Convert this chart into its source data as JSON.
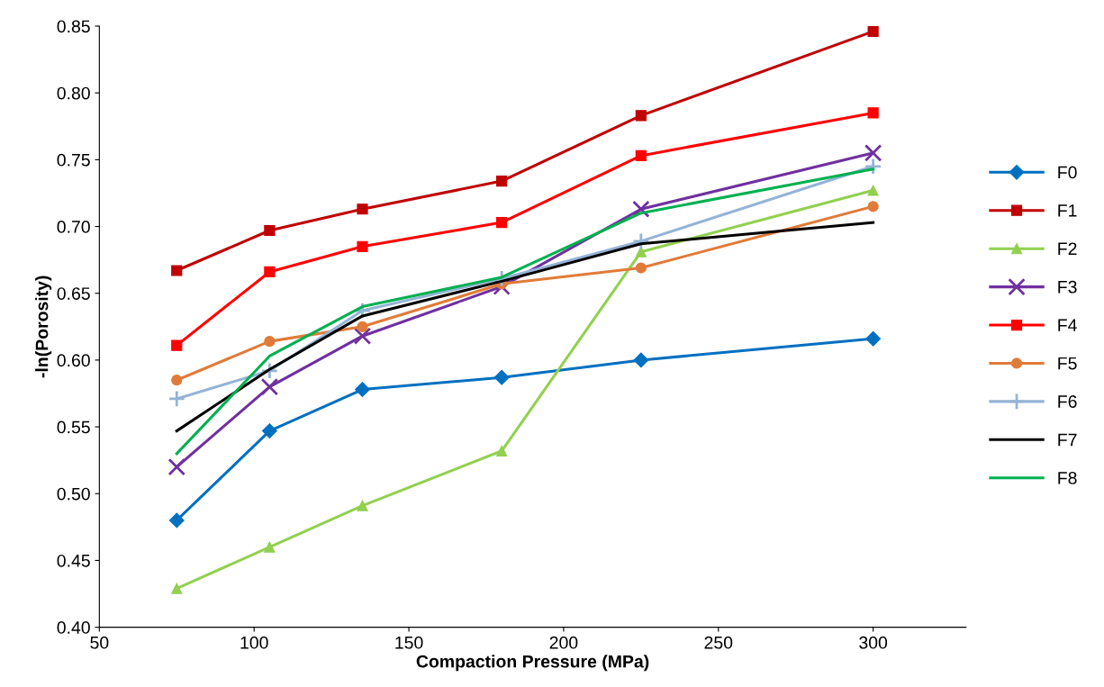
{
  "chart_data": {
    "type": "line",
    "xlabel": "Compaction Pressure (MPa)",
    "ylabel": "-ln(Porosity)",
    "x": [
      75,
      105,
      135,
      180,
      225,
      300
    ],
    "xlim": [
      50,
      330
    ],
    "xticks": [
      50,
      100,
      150,
      200,
      250,
      300
    ],
    "ylim": [
      0.4,
      0.85
    ],
    "yticks": [
      {
        "value": 0.4,
        "label": "0.40"
      },
      {
        "value": 0.45,
        "label": "0.45"
      },
      {
        "value": 0.5,
        "label": "0.50"
      },
      {
        "value": 0.55,
        "label": "0.55"
      },
      {
        "value": 0.6,
        "label": "0.60"
      },
      {
        "value": 0.65,
        "label": "0.65"
      },
      {
        "value": 0.7,
        "label": "0.70"
      },
      {
        "value": 0.75,
        "label": "0.75"
      },
      {
        "value": 0.8,
        "label": "0.80"
      },
      {
        "value": 0.85,
        "label": "0.85"
      }
    ],
    "grid": false,
    "legend": "right",
    "series": [
      {
        "name": "F0",
        "color": "#0070c0",
        "marker": "diamond",
        "values": [
          0.48,
          0.547,
          0.578,
          0.587,
          0.6,
          0.616
        ]
      },
      {
        "name": "F1",
        "color": "#c00000",
        "marker": "square",
        "values": [
          0.667,
          0.697,
          0.713,
          0.734,
          0.783,
          0.846
        ]
      },
      {
        "name": "F2",
        "color": "#92d050",
        "marker": "triangle",
        "values": [
          0.429,
          0.46,
          0.491,
          0.532,
          0.681,
          0.727
        ]
      },
      {
        "name": "F3",
        "color": "#7030a0",
        "marker": "cross",
        "values": [
          0.52,
          0.58,
          0.618,
          0.655,
          0.713,
          0.755
        ]
      },
      {
        "name": "F4",
        "color": "#ff0000",
        "marker": "square",
        "values": [
          0.611,
          0.666,
          0.685,
          0.703,
          0.753,
          0.785
        ]
      },
      {
        "name": "F5",
        "color": "#e07b39",
        "marker": "circle",
        "values": [
          0.585,
          0.614,
          0.625,
          0.657,
          0.669,
          0.715
        ]
      },
      {
        "name": "F6",
        "color": "#95b3d7",
        "marker": "plus",
        "values": [
          0.571,
          0.592,
          0.637,
          0.661,
          0.689,
          0.745
        ]
      },
      {
        "name": "F7",
        "color": "#000000",
        "marker": "none",
        "values": [
          0.547,
          0.593,
          0.633,
          0.659,
          0.687,
          0.703
        ]
      },
      {
        "name": "F8",
        "color": "#00b050",
        "marker": "none",
        "values": [
          0.53,
          0.603,
          0.64,
          0.662,
          0.71,
          0.743
        ]
      }
    ]
  }
}
